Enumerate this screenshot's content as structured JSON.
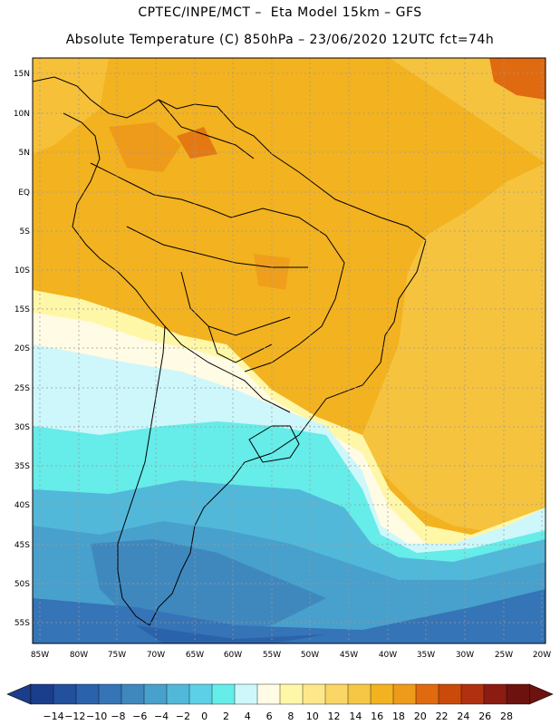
{
  "header": {
    "line1": "CPTEC/INPE/MCT –  Eta Model 15km – GFS",
    "line2": "Absolute Temperature (C) 850hPa – 23/06/2020 12UTC fct=74h"
  },
  "map": {
    "lat_labels": [
      "15N",
      "10N",
      "5N",
      "EQ",
      "5S",
      "10S",
      "15S",
      "20S",
      "25S",
      "30S",
      "35S",
      "40S",
      "45S",
      "50S",
      "55S"
    ],
    "lon_labels": [
      "85W",
      "80W",
      "75W",
      "70W",
      "65W",
      "60W",
      "55W",
      "50W",
      "45W",
      "40W",
      "35W",
      "30W",
      "25W",
      "20W"
    ]
  },
  "colorbar": {
    "labels": [
      "-14",
      "-12",
      "-10",
      "-8",
      "-6",
      "-4",
      "-2",
      "0",
      "2",
      "4",
      "6",
      "8",
      "10",
      "12",
      "14",
      "16",
      "18",
      "20",
      "22",
      "24",
      "26",
      "28"
    ],
    "colors": [
      "#1b3e8c",
      "#22509c",
      "#2b62ac",
      "#3574b6",
      "#3f88be",
      "#48a0cc",
      "#52b8d9",
      "#5cd0e6",
      "#66ece9",
      "#cdf7fb",
      "#fffbe4",
      "#fff7a8",
      "#fde78a",
      "#f9d665",
      "#f6c645",
      "#f3b21f",
      "#ee9a1a",
      "#e06a10",
      "#cb4a0a",
      "#b03010",
      "#8c1c12",
      "#6e1210"
    ]
  }
}
